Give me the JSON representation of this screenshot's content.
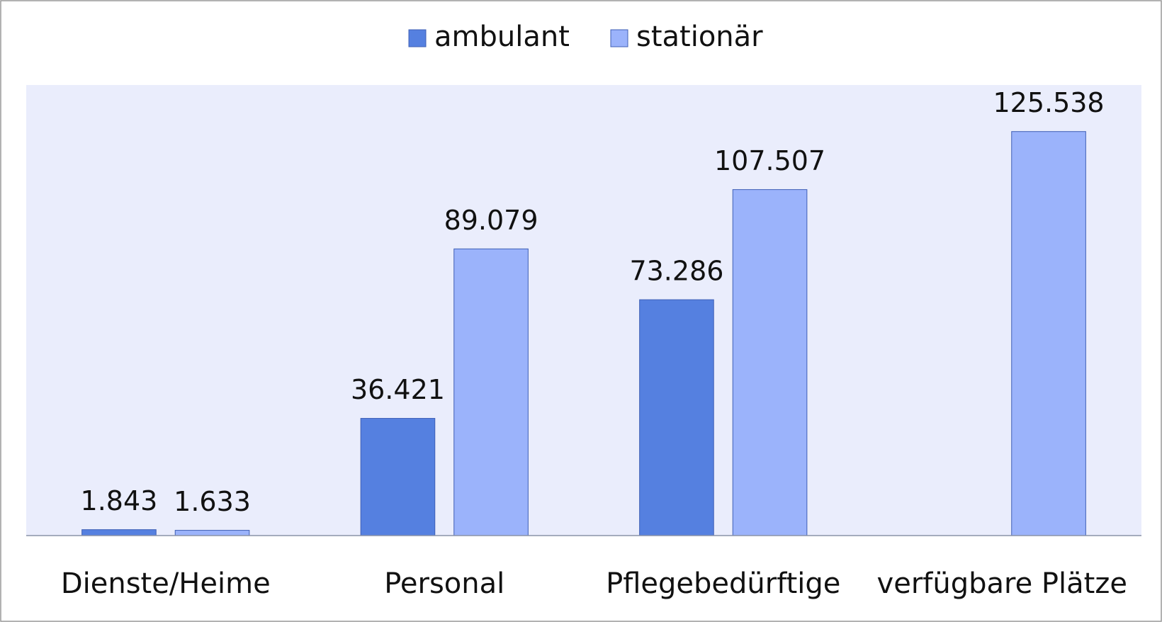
{
  "chart_data": {
    "type": "bar",
    "categories": [
      "Dienste/Heime",
      "Personal",
      "Pflegebedürftige",
      "verfügbare Plätze"
    ],
    "series": [
      {
        "name": "ambulant",
        "color": "#5580e0",
        "values": [
          1843,
          36421,
          73286,
          null
        ],
        "value_labels": [
          "1.843",
          "36.421",
          "73.286",
          null
        ]
      },
      {
        "name": "stationär",
        "color": "#9bb3fb",
        "values": [
          1633,
          89079,
          107507,
          125538
        ],
        "value_labels": [
          "1.633",
          "89.079",
          "107.507",
          "125.538"
        ]
      }
    ],
    "ylim": [
      0,
      140000
    ],
    "legend": "top"
  }
}
